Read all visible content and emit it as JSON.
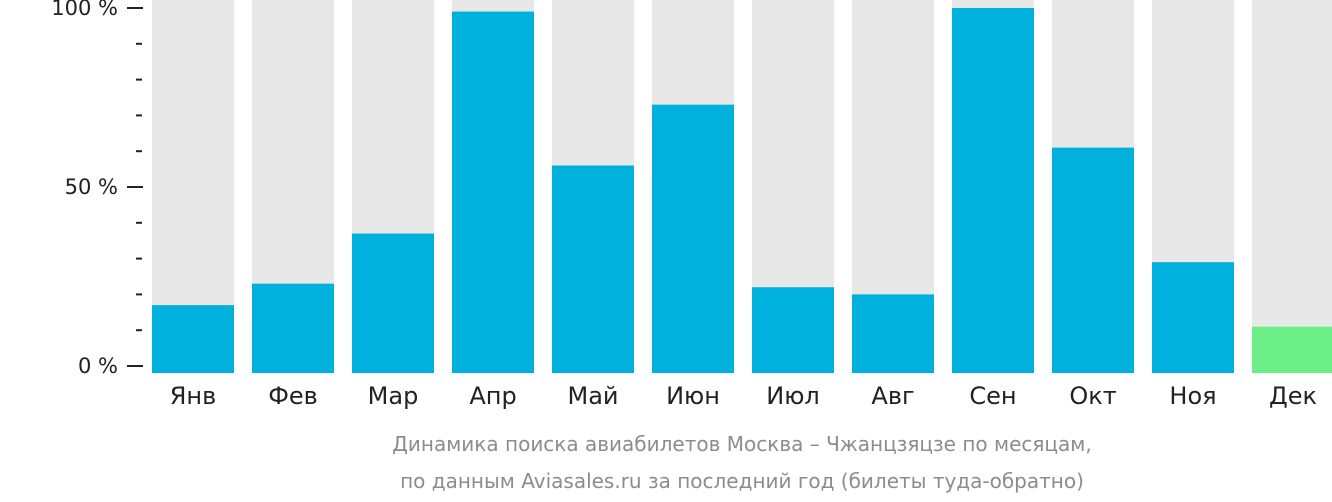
{
  "chart_data": {
    "type": "bar",
    "categories": [
      "Янв",
      "Фев",
      "Мар",
      "Апр",
      "Май",
      "Июн",
      "Июл",
      "Авг",
      "Сен",
      "Окт",
      "Ноя",
      "Дек"
    ],
    "values": [
      17,
      23,
      37,
      99,
      56,
      73,
      22,
      20,
      100,
      61,
      29,
      11
    ],
    "highlight_index": 11,
    "ylim": [
      0,
      100
    ],
    "yticks": [
      {
        "value": 100,
        "label": "100 %"
      },
      {
        "value": 50,
        "label": "50 %"
      },
      {
        "value": 0,
        "label": "0 %"
      }
    ],
    "minor_tick_step": 10,
    "colors": {
      "bar": "#00b0dd",
      "highlight": "#6def88",
      "track": "#e8e8e8",
      "axis": "#222222"
    },
    "caption_line1": "Динамика поиска авиабилетов Москва – Чжанцзяцзе по месяцам,",
    "caption_line2": "по данным Aviasales.ru за последний год (билеты туда-обратно)"
  }
}
